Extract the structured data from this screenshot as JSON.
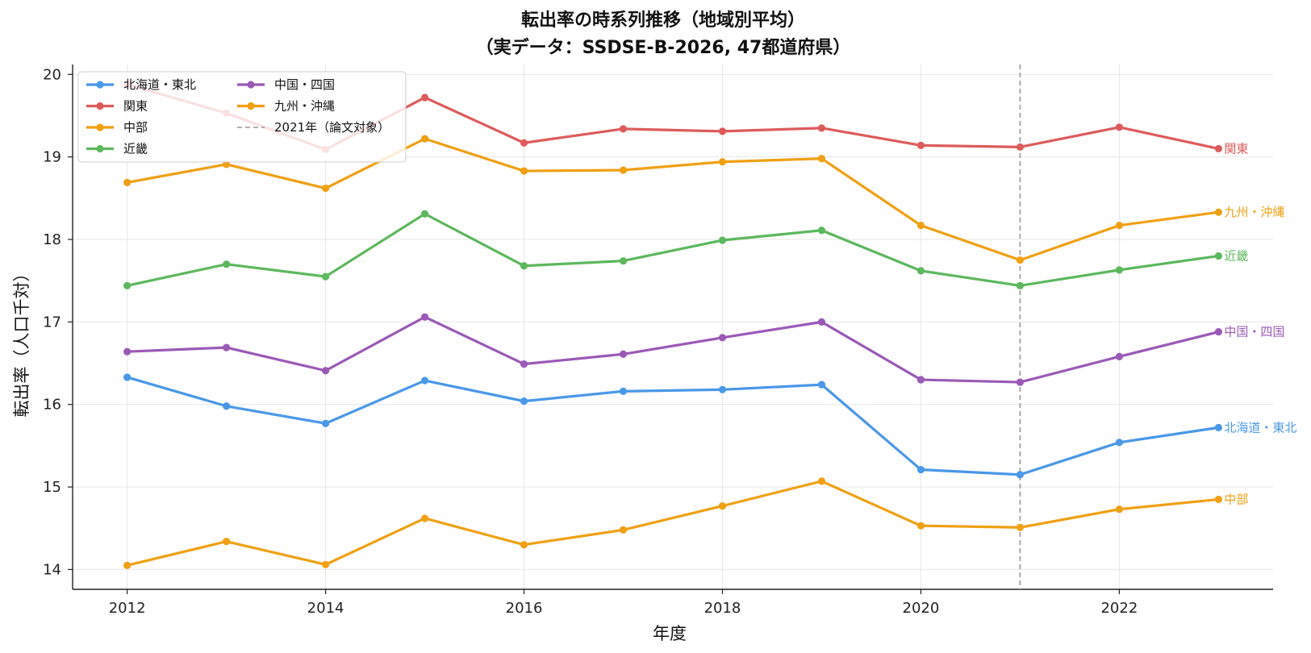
{
  "chart_data": {
    "type": "line",
    "title": "転出率の時系列推移（地域別平均）",
    "subtitle": "（実データ：SSDSE-B-2026, 47都道府県）",
    "xlabel": "年度",
    "ylabel": "転出率（人口千対）",
    "x": [
      2012,
      2013,
      2014,
      2015,
      2016,
      2017,
      2018,
      2019,
      2020,
      2021,
      2022,
      2023
    ],
    "xticks": [
      "2012",
      "2014",
      "2016",
      "2018",
      "2020",
      "2022"
    ],
    "yticks": [
      "14",
      "15",
      "16",
      "17",
      "18",
      "19",
      "20"
    ],
    "xlim": [
      2011.45,
      2023.55
    ],
    "ylim": [
      13.76,
      20.12
    ],
    "grid": true,
    "legend_position": "top-left",
    "series": [
      {
        "name": "北海道・東北",
        "color": "#4a98e8",
        "values": [
          16.33,
          15.98,
          15.77,
          16.29,
          16.04,
          16.16,
          16.18,
          16.24,
          15.21,
          15.15,
          15.54,
          15.72
        ]
      },
      {
        "name": "関東",
        "color": "#dd5b5b",
        "values": [
          19.88,
          19.53,
          19.09,
          19.72,
          19.17,
          19.34,
          19.31,
          19.35,
          19.14,
          19.12,
          19.36,
          19.1
        ]
      },
      {
        "name": "中部",
        "color": "#f0a012",
        "values": [
          14.05,
          14.34,
          14.06,
          14.62,
          14.3,
          14.48,
          14.77,
          15.07,
          14.53,
          14.51,
          14.73,
          14.85
        ]
      },
      {
        "name": "近畿",
        "color": "#5cb85c",
        "values": [
          17.44,
          17.7,
          17.55,
          18.31,
          17.68,
          17.74,
          17.99,
          18.11,
          17.62,
          17.44,
          17.63,
          17.8
        ]
      },
      {
        "name": "中国・四国",
        "color": "#9b59b6",
        "values": [
          16.64,
          16.69,
          16.41,
          17.06,
          16.49,
          16.61,
          16.81,
          17.0,
          16.3,
          16.27,
          16.58,
          16.88
        ]
      },
      {
        "name": "九州・沖縄",
        "color": "#f0a012",
        "values": [
          18.69,
          18.91,
          18.62,
          19.22,
          18.83,
          18.84,
          18.94,
          18.98,
          18.17,
          17.75,
          18.17,
          18.33
        ]
      }
    ],
    "reference_line": {
      "x": 2021,
      "label": "2021年（論文対象）",
      "color": "#999999"
    }
  }
}
